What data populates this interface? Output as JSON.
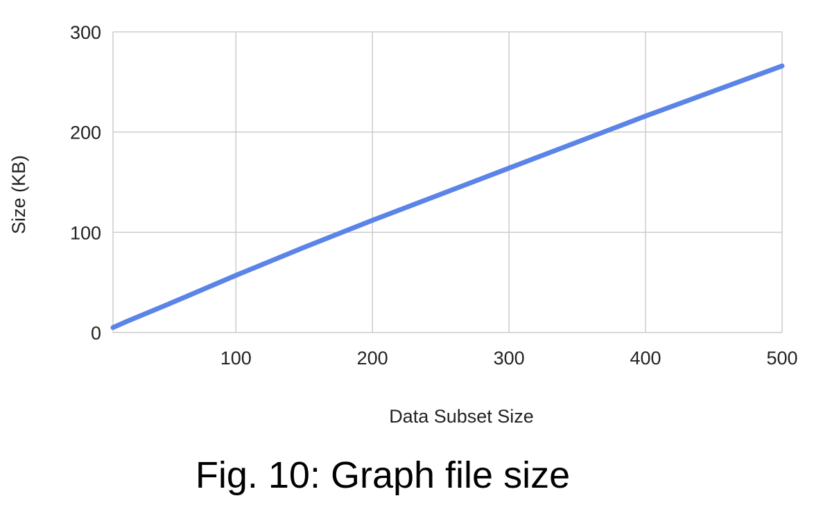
{
  "caption": "Fig. 10: Graph file size",
  "chart_data": {
    "type": "line",
    "title": "",
    "xlabel": "Data Subset Size",
    "ylabel": "Size (KB)",
    "xlim": [
      10,
      500
    ],
    "ylim": [
      0,
      300
    ],
    "xticks": [
      100,
      200,
      300,
      400,
      500
    ],
    "yticks": [
      0,
      100,
      200,
      300
    ],
    "grid": true,
    "legend": "none",
    "series": [
      {
        "color": "#5b84e8",
        "x": [
          10,
          20,
          50,
          100,
          150,
          200,
          250,
          300,
          350,
          400,
          450,
          500
        ],
        "y": [
          5,
          11,
          28,
          57,
          85,
          112,
          138,
          164,
          190,
          216,
          241,
          266
        ]
      }
    ]
  }
}
